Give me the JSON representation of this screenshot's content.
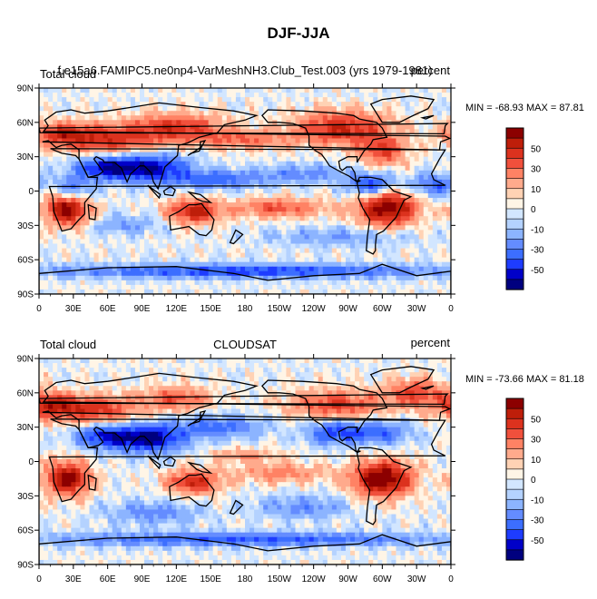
{
  "page_title": "DJF-JJA",
  "colors": [
    "#00007f",
    "#0000c8",
    "#1e3cff",
    "#3c6eff",
    "#648cff",
    "#8cb4ff",
    "#b4d2ff",
    "#d2e6ff",
    "#fff5e6",
    "#ffd2b4",
    "#ffaa8c",
    "#ff8264",
    "#f0503c",
    "#dc321e",
    "#be1e0a",
    "#8c0000"
  ],
  "land_color": "#000000",
  "chart_data": [
    {
      "type": "heatmap",
      "title_left": "Total cloud",
      "title_center": "f.e15a6.FAMIPC5.ne0np4-VarMeshNH3.Club_Test.003 (yrs 1979-1981)",
      "title_right": "percent",
      "stats_label": "MIN = -68.93 MAX =  87.81",
      "min": -68.93,
      "max": 87.81,
      "x_ticks": [
        "0",
        "30E",
        "60E",
        "90E",
        "120E",
        "150E",
        "180",
        "150W",
        "120W",
        "90W",
        "60W",
        "30W",
        "0"
      ],
      "y_ticks": [
        "90N",
        "60N",
        "30N",
        "0",
        "30S",
        "60S",
        "90S"
      ],
      "xlim": [
        0,
        360
      ],
      "ylim": [
        -90,
        90
      ],
      "colorbar_levels": [
        -60,
        -50,
        -40,
        -30,
        -20,
        -10,
        -5,
        0,
        5,
        10,
        20,
        30,
        40,
        50,
        60
      ],
      "colorbar_labels": [
        "50",
        "30",
        "10",
        "0",
        "-10",
        "-30",
        "-50"
      ],
      "field_centers": [
        {
          "lon": 25,
          "lat": -15,
          "amp": 75,
          "rx": 18,
          "ry": 14
        },
        {
          "lon": 60,
          "lat": 45,
          "amp": 45,
          "rx": 40,
          "ry": 12
        },
        {
          "lon": 20,
          "lat": 50,
          "amp": 40,
          "rx": 25,
          "ry": 10
        },
        {
          "lon": 120,
          "lat": 55,
          "amp": 45,
          "rx": 40,
          "ry": 12
        },
        {
          "lon": 265,
          "lat": 55,
          "amp": 50,
          "rx": 40,
          "ry": 14
        },
        {
          "lon": 300,
          "lat": 35,
          "amp": 40,
          "rx": 20,
          "ry": 12
        },
        {
          "lon": 305,
          "lat": -15,
          "amp": 70,
          "rx": 25,
          "ry": 15
        },
        {
          "lon": 135,
          "lat": -18,
          "amp": 55,
          "rx": 22,
          "ry": 10
        },
        {
          "lon": 210,
          "lat": -15,
          "amp": 35,
          "rx": 40,
          "ry": 8
        },
        {
          "lon": 180,
          "lat": 45,
          "amp": 30,
          "rx": 40,
          "ry": 8
        },
        {
          "lon": 95,
          "lat": 20,
          "amp": -60,
          "rx": 35,
          "ry": 12
        },
        {
          "lon": 55,
          "lat": 20,
          "amp": -45,
          "rx": 25,
          "ry": 10
        },
        {
          "lon": 30,
          "lat": 0,
          "amp": -40,
          "rx": 15,
          "ry": 12
        },
        {
          "lon": 155,
          "lat": 10,
          "amp": -35,
          "rx": 40,
          "ry": 8
        },
        {
          "lon": 290,
          "lat": 5,
          "amp": -45,
          "rx": 20,
          "ry": 10
        },
        {
          "lon": 345,
          "lat": 5,
          "amp": -35,
          "rx": 20,
          "ry": 10
        },
        {
          "lon": 230,
          "lat": 15,
          "amp": -25,
          "rx": 40,
          "ry": 8
        },
        {
          "lon": 180,
          "lat": -70,
          "amp": -45,
          "rx": 180,
          "ry": 6
        },
        {
          "lon": 75,
          "lat": -30,
          "amp": -20,
          "rx": 30,
          "ry": 8
        },
        {
          "lon": 260,
          "lat": -40,
          "amp": -20,
          "rx": 60,
          "ry": 8
        }
      ]
    },
    {
      "type": "heatmap",
      "title_left": "Total cloud",
      "title_center": "CLOUDSAT",
      "title_right": "percent",
      "stats_label": "MIN = -73.66 MAX =  81.18",
      "min": -73.66,
      "max": 81.18,
      "x_ticks": [
        "0",
        "30E",
        "60E",
        "90E",
        "120E",
        "150E",
        "180",
        "150W",
        "120W",
        "90W",
        "60W",
        "30W",
        "0"
      ],
      "y_ticks": [
        "90N",
        "60N",
        "30N",
        "0",
        "30S",
        "60S",
        "90S"
      ],
      "xlim": [
        0,
        360
      ],
      "ylim": [
        -90,
        90
      ],
      "colorbar_levels": [
        -60,
        -50,
        -40,
        -30,
        -20,
        -10,
        -5,
        0,
        5,
        10,
        20,
        30,
        40,
        50,
        60
      ],
      "colorbar_labels": [
        "50",
        "30",
        "10",
        "0",
        "-10",
        "-30",
        "-50"
      ],
      "field_centers": [
        {
          "lon": 25,
          "lat": -15,
          "amp": 70,
          "rx": 18,
          "ry": 14
        },
        {
          "lon": 45,
          "lat": 45,
          "amp": 45,
          "rx": 40,
          "ry": 12
        },
        {
          "lon": 10,
          "lat": 50,
          "amp": 40,
          "rx": 20,
          "ry": 10
        },
        {
          "lon": 120,
          "lat": 55,
          "amp": 35,
          "rx": 30,
          "ry": 10
        },
        {
          "lon": 260,
          "lat": 50,
          "amp": 40,
          "rx": 40,
          "ry": 12
        },
        {
          "lon": 300,
          "lat": -15,
          "amp": 75,
          "rx": 25,
          "ry": 15
        },
        {
          "lon": 135,
          "lat": -18,
          "amp": 50,
          "rx": 22,
          "ry": 10
        },
        {
          "lon": 210,
          "lat": -10,
          "amp": 25,
          "rx": 40,
          "ry": 8
        },
        {
          "lon": 330,
          "lat": 60,
          "amp": 40,
          "rx": 25,
          "ry": 12
        },
        {
          "lon": 95,
          "lat": 20,
          "amp": -65,
          "rx": 30,
          "ry": 12
        },
        {
          "lon": 55,
          "lat": 22,
          "amp": -45,
          "rx": 25,
          "ry": 10
        },
        {
          "lon": 155,
          "lat": 30,
          "amp": -35,
          "rx": 40,
          "ry": 10
        },
        {
          "lon": 260,
          "lat": 25,
          "amp": -45,
          "rx": 25,
          "ry": 10
        },
        {
          "lon": 300,
          "lat": 25,
          "amp": -35,
          "rx": 25,
          "ry": 10
        },
        {
          "lon": 180,
          "lat": -68,
          "amp": -40,
          "rx": 180,
          "ry": 6
        },
        {
          "lon": 100,
          "lat": -45,
          "amp": -25,
          "rx": 40,
          "ry": 10
        },
        {
          "lon": 230,
          "lat": -40,
          "amp": -25,
          "rx": 40,
          "ry": 10
        },
        {
          "lon": 180,
          "lat": 5,
          "amp": 20,
          "rx": 30,
          "ry": 6
        }
      ]
    }
  ]
}
